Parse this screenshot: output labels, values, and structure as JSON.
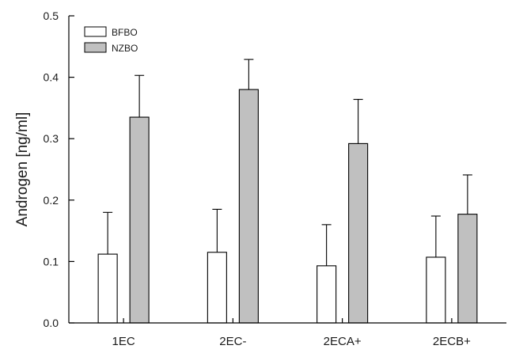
{
  "chart_data": {
    "type": "bar",
    "title": "",
    "xlabel": "",
    "ylabel": "Androgen [ng/ml]",
    "ylim": [
      0,
      0.5
    ],
    "yticks": [
      "0.0",
      "0.1",
      "0.2",
      "0.3",
      "0.4",
      "0.5"
    ],
    "grid": false,
    "legend_position": "top-left",
    "categories": [
      "1EC",
      "2EC-",
      "2ECA+",
      "2ECB+"
    ],
    "series": [
      {
        "name": "BFBO",
        "color": "#ffffff",
        "values": [
          0.112,
          0.115,
          0.093,
          0.107
        ],
        "errors": [
          0.068,
          0.07,
          0.067,
          0.067
        ]
      },
      {
        "name": "NZBO",
        "color": "#c0c0c0",
        "values": [
          0.335,
          0.38,
          0.292,
          0.177
        ],
        "errors": [
          0.068,
          0.049,
          0.072,
          0.064
        ]
      }
    ]
  }
}
